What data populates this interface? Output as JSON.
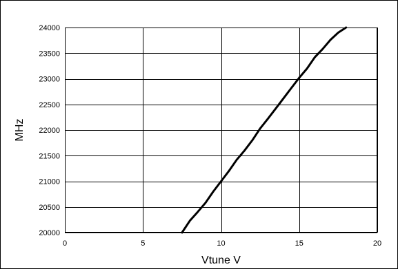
{
  "chart_data": {
    "type": "line",
    "title": "",
    "xlabel": "Vtune V",
    "ylabel": "MHz",
    "xlim": [
      0,
      20
    ],
    "ylim": [
      20000,
      24000
    ],
    "x_ticks": [
      0,
      5,
      10,
      15,
      20
    ],
    "y_ticks": [
      20000,
      20500,
      21000,
      21500,
      22000,
      22500,
      23000,
      23500,
      24000
    ],
    "grid": true,
    "legend": "none",
    "line_color": "#000000",
    "series": [
      {
        "x": [
          7.5,
          8,
          8.5,
          9,
          9.5,
          10,
          10.5,
          11,
          11.5,
          12,
          12.5,
          13,
          13.5,
          14,
          14.5,
          15,
          15.5,
          16,
          16.5,
          17,
          17.5,
          18
        ],
        "values": [
          20000,
          20230,
          20400,
          20580,
          20800,
          21000,
          21200,
          21420,
          21600,
          21800,
          22030,
          22220,
          22420,
          22620,
          22820,
          23020,
          23200,
          23420,
          23580,
          23760,
          23900,
          24000
        ]
      }
    ]
  }
}
